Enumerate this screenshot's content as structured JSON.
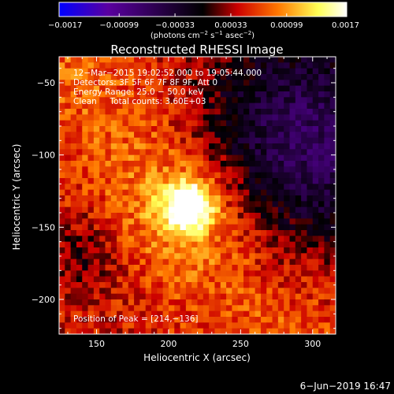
{
  "chart_data": {
    "type": "heatmap",
    "title": "Reconstructed RHESSI Image",
    "xlabel": "Heliocentric X (arcsec)",
    "ylabel": "Heliocentric Y (arcsec)",
    "xlim": [
      124,
      316
    ],
    "ylim": [
      -224,
      -32
    ],
    "x_ticks": [
      150,
      200,
      250,
      300
    ],
    "x_tick_labels": [
      "150",
      "200",
      "250",
      "300"
    ],
    "y_ticks": [
      -50,
      -100,
      -150,
      -200
    ],
    "y_tick_labels": [
      "−50",
      "−100",
      "−150",
      "−200"
    ],
    "colorbar": {
      "min": -0.0017,
      "max": 0.0017,
      "ticks": [
        -0.0017,
        -0.00099,
        -0.00033,
        0.00033,
        0.00099,
        0.0017
      ],
      "tick_labels": [
        "−0.0017",
        "−0.00099",
        "−0.00033",
        "0.00033",
        "0.00099",
        "0.0017"
      ],
      "unit_base": "(photons cm",
      "unit_sup1": "−2",
      "unit_mid1": " s",
      "unit_sup2": "−1",
      "unit_mid2": " asec",
      "unit_sup3": "−2",
      "unit_end": ")",
      "colors": [
        "#0000ff",
        "#5a00a0",
        "#000000",
        "#cc0000",
        "#ff7700",
        "#ffff55",
        "#ffffff"
      ]
    },
    "peak": {
      "x": 214,
      "y": -136
    },
    "info_lines": [
      "12−Mar−2015 19:02:52.000 to 19:05:44.000",
      "Detectors: 3F 5F 6F 7F 8F 9F, Att 0",
      "Energy Range: 25.0 − 50.0 keV",
      "Clean     Total counts: 3.60E+03"
    ],
    "peak_label": "Position of Peak = [214,−136]",
    "date_stamp": "6−Jun−2019 16:47"
  }
}
